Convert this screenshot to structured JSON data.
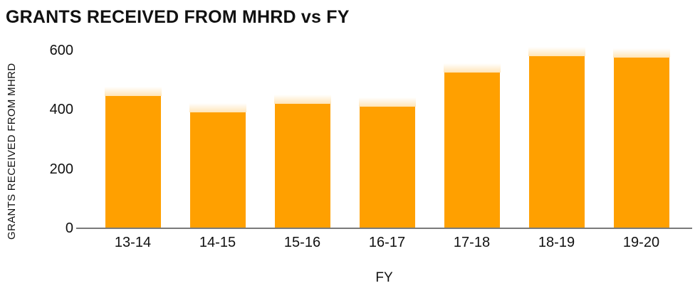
{
  "chart_data": {
    "type": "bar",
    "title": "GRANTS RECEIVED FROM MHRD vs FY",
    "xlabel": "FY",
    "ylabel": "GRANTS RECEIVED FROM MHRD",
    "categories": [
      "13-14",
      "14-15",
      "15-16",
      "16-17",
      "17-18",
      "18-19",
      "19-20"
    ],
    "values": [
      445,
      390,
      420,
      410,
      525,
      580,
      575
    ],
    "yticks": [
      0,
      200,
      400,
      600
    ],
    "ylim": [
      0,
      600
    ],
    "grid": false,
    "legend": false,
    "colors": {
      "bar": "#FFA000",
      "axis": "#7a7a7a",
      "text": "#111111",
      "background": "#ffffff"
    }
  }
}
